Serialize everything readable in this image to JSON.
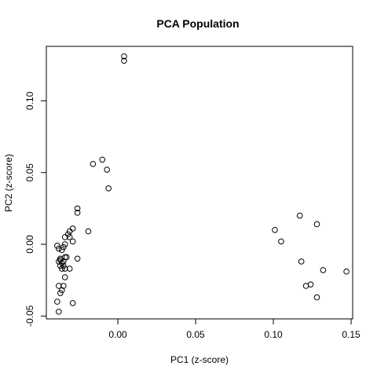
{
  "chart_data": {
    "type": "scatter",
    "title": "PCA Population",
    "xlabel": "PC1 (z-score)",
    "ylabel": "PC2 (z-score)",
    "xlim": [
      -0.046,
      0.151
    ],
    "ylim": [
      -0.052,
      0.138
    ],
    "x_ticks": [
      {
        "value": 0.0,
        "label": "0.00"
      },
      {
        "value": 0.05,
        "label": "0.05"
      },
      {
        "value": 0.1,
        "label": "0.10"
      },
      {
        "value": 0.15,
        "label": "0.15"
      }
    ],
    "y_ticks": [
      {
        "value": -0.05,
        "label": "-0.05"
      },
      {
        "value": 0.0,
        "label": "0.00"
      },
      {
        "value": 0.05,
        "label": "0.05"
      },
      {
        "value": 0.1,
        "label": "0.10"
      }
    ],
    "grid": false,
    "legend": "none",
    "points": [
      {
        "x": 0.004,
        "y": 0.131
      },
      {
        "x": 0.004,
        "y": 0.128
      },
      {
        "x": -0.016,
        "y": 0.056
      },
      {
        "x": -0.01,
        "y": 0.059
      },
      {
        "x": -0.007,
        "y": 0.052
      },
      {
        "x": -0.006,
        "y": 0.039
      },
      {
        "x": -0.026,
        "y": 0.025
      },
      {
        "x": -0.026,
        "y": 0.022
      },
      {
        "x": -0.019,
        "y": 0.009
      },
      {
        "x": -0.029,
        "y": 0.011
      },
      {
        "x": -0.031,
        "y": 0.009
      },
      {
        "x": -0.032,
        "y": 0.007
      },
      {
        "x": -0.031,
        "y": 0.005
      },
      {
        "x": -0.034,
        "y": 0.005
      },
      {
        "x": -0.029,
        "y": 0.002
      },
      {
        "x": -0.034,
        "y": 0.0
      },
      {
        "x": -0.035,
        "y": -0.002
      },
      {
        "x": -0.039,
        "y": -0.001
      },
      {
        "x": -0.038,
        "y": -0.003
      },
      {
        "x": -0.036,
        "y": -0.004
      },
      {
        "x": -0.037,
        "y": -0.01
      },
      {
        "x": -0.034,
        "y": -0.009
      },
      {
        "x": -0.035,
        "y": -0.012
      },
      {
        "x": -0.037,
        "y": -0.011
      },
      {
        "x": -0.036,
        "y": -0.013
      },
      {
        "x": -0.038,
        "y": -0.012
      },
      {
        "x": -0.035,
        "y": -0.015
      },
      {
        "x": -0.037,
        "y": -0.015
      },
      {
        "x": -0.036,
        "y": -0.017
      },
      {
        "x": -0.034,
        "y": -0.017
      },
      {
        "x": -0.031,
        "y": -0.017
      },
      {
        "x": -0.026,
        "y": -0.01
      },
      {
        "x": -0.034,
        "y": -0.023
      },
      {
        "x": -0.038,
        "y": -0.029
      },
      {
        "x": -0.035,
        "y": -0.029
      },
      {
        "x": -0.036,
        "y": -0.032
      },
      {
        "x": -0.037,
        "y": -0.034
      },
      {
        "x": -0.039,
        "y": -0.04
      },
      {
        "x": -0.029,
        "y": -0.041
      },
      {
        "x": -0.038,
        "y": -0.047
      },
      {
        "x": -0.033,
        "y": -0.009
      },
      {
        "x": 0.101,
        "y": 0.01
      },
      {
        "x": 0.105,
        "y": 0.002
      },
      {
        "x": 0.117,
        "y": 0.02
      },
      {
        "x": 0.128,
        "y": 0.014
      },
      {
        "x": 0.118,
        "y": -0.012
      },
      {
        "x": 0.132,
        "y": -0.018
      },
      {
        "x": 0.147,
        "y": -0.019
      },
      {
        "x": 0.121,
        "y": -0.029
      },
      {
        "x": 0.124,
        "y": -0.028
      },
      {
        "x": 0.128,
        "y": -0.037
      }
    ]
  }
}
